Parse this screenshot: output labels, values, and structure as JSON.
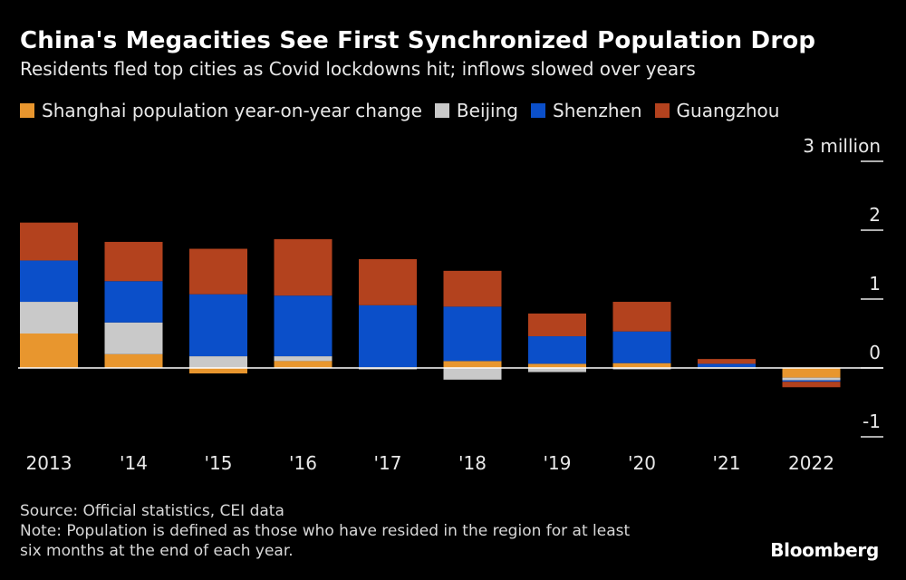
{
  "chart_data": {
    "type": "bar",
    "stacked": true,
    "title": "China's Megacities See First Synchronized Population Drop",
    "subtitle": "Residents fled top cities as Covid lockdowns hit; inflows slowed over years",
    "categories": [
      "2013",
      "'14",
      "'15",
      "'16",
      "'17",
      "'18",
      "'19",
      "'20",
      "'21",
      "2022"
    ],
    "series": [
      {
        "name": "Shanghai population year-on-year change",
        "color": "#e8962e",
        "values": [
          0.5,
          0.2,
          -0.08,
          0.1,
          0.01,
          0.1,
          0.06,
          0.07,
          0.01,
          -0.14
        ]
      },
      {
        "name": "Beijing",
        "color": "#c9c9c9",
        "values": [
          0.46,
          0.46,
          0.17,
          0.07,
          -0.02,
          -0.17,
          -0.06,
          -0.02,
          -0.01,
          -0.04
        ]
      },
      {
        "name": "Shenzhen",
        "color": "#0b4fc9",
        "values": [
          0.6,
          0.6,
          0.9,
          0.88,
          0.9,
          0.79,
          0.4,
          0.46,
          0.05,
          -0.02
        ]
      },
      {
        "name": "Guangzhou",
        "color": "#b3421e",
        "values": [
          0.55,
          0.57,
          0.66,
          0.82,
          0.67,
          0.52,
          0.33,
          0.43,
          0.07,
          -0.08
        ]
      }
    ],
    "y_axis": {
      "ticks": [
        3,
        2,
        1,
        0,
        -1
      ],
      "tick_labels": [
        "3 million",
        "2",
        "1",
        "0",
        "-1"
      ],
      "ylim": [
        -1,
        3
      ],
      "position": "right"
    },
    "grid": false
  },
  "footer": {
    "source": "Source: Official statistics, CEI data",
    "note_line1": "Note: Population is defined as those who have resided in the region for at least",
    "note_line2": "six months at the end of each year."
  },
  "brand": "Bloomberg",
  "colors": {
    "background": "#000000",
    "text": "#ffffff"
  }
}
